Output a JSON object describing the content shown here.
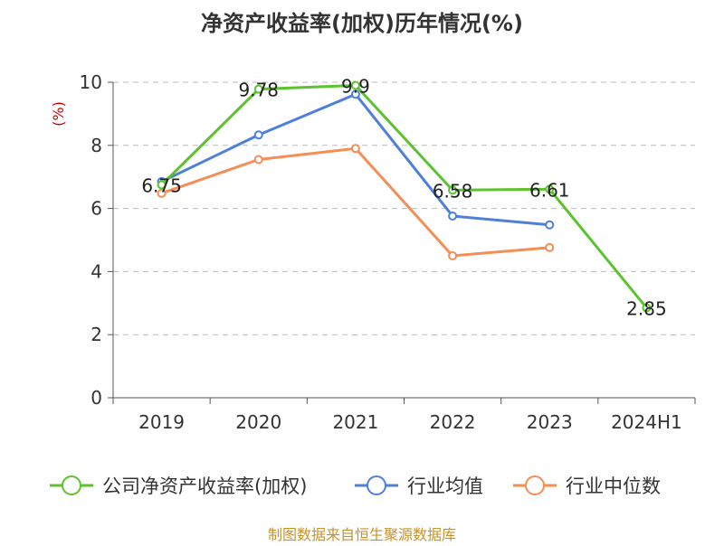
{
  "chart_data": {
    "type": "line",
    "title": "净资产收益率(加权)历年情况(%)",
    "ylabel": "(%)",
    "ylim": [
      0,
      10
    ],
    "yticks": [
      0,
      2,
      4,
      6,
      8,
      10
    ],
    "categories": [
      "2019",
      "2020",
      "2021",
      "2022",
      "2023",
      "2024H1"
    ],
    "grid": true,
    "legend_position": "bottom",
    "series": [
      {
        "name": "公司净资产收益率(加权)",
        "color": "#5cc22e",
        "values": [
          6.75,
          9.78,
          9.9,
          6.58,
          6.61,
          2.85
        ],
        "labels": [
          "6.75",
          "9.78",
          "9.9",
          "6.58",
          "6.61",
          "2.85"
        ]
      },
      {
        "name": "行业均值",
        "color": "#4e7fdc",
        "values": [
          6.85,
          8.33,
          9.62,
          5.76,
          5.48,
          null
        ]
      },
      {
        "name": "行业中位数",
        "color": "#f58d55",
        "values": [
          6.48,
          7.55,
          7.9,
          4.5,
          4.76,
          null
        ]
      }
    ]
  },
  "source_text": "制图数据来自恒生聚源数据库"
}
